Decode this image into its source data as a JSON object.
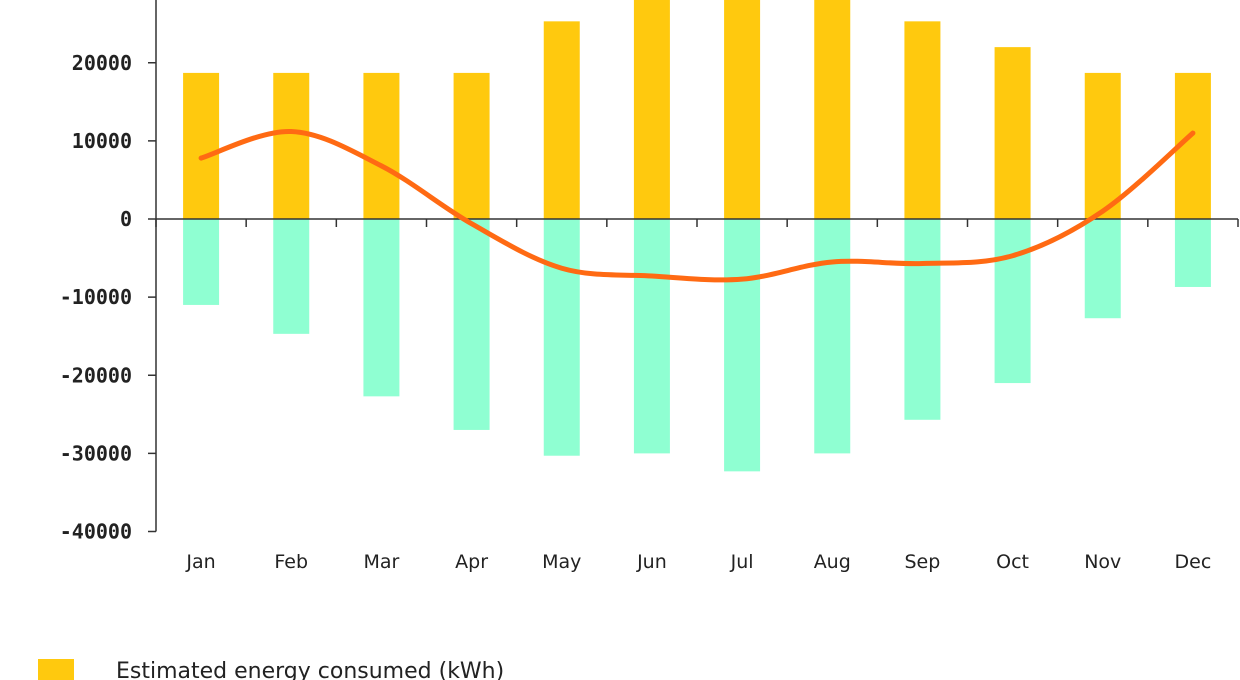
{
  "chart_data": {
    "type": "bar",
    "categories": [
      "Jan",
      "Feb",
      "Mar",
      "Apr",
      "May",
      "Jun",
      "Jul",
      "Aug",
      "Sep",
      "Oct",
      "Nov",
      "Dec"
    ],
    "series": [
      {
        "name": "Estimated energy consumed (kWh)",
        "kind": "bar",
        "color": "#FFC90E",
        "values": [
          18700,
          18700,
          18700,
          18700,
          25300,
          28500,
          28500,
          28500,
          25300,
          22000,
          18700,
          18700
        ]
      },
      {
        "kind": "bar",
        "color": "#8FFFD2",
        "values": [
          -11000,
          -14700,
          -22700,
          -27000,
          -30300,
          -30000,
          -32300,
          -30000,
          -25700,
          -21000,
          -12700,
          -8700
        ]
      },
      {
        "kind": "line",
        "color": "#FF6A13",
        "values": [
          7800,
          11200,
          6800,
          -600,
          -6300,
          -7300,
          -7700,
          -5500,
          -5700,
          -4700,
          1000,
          11000
        ]
      }
    ],
    "y_ticks": [
      20000,
      10000,
      0,
      -10000,
      -20000,
      -30000,
      -40000
    ],
    "ylim": [
      -40000,
      28500
    ],
    "legend_position": "bottom-left"
  }
}
